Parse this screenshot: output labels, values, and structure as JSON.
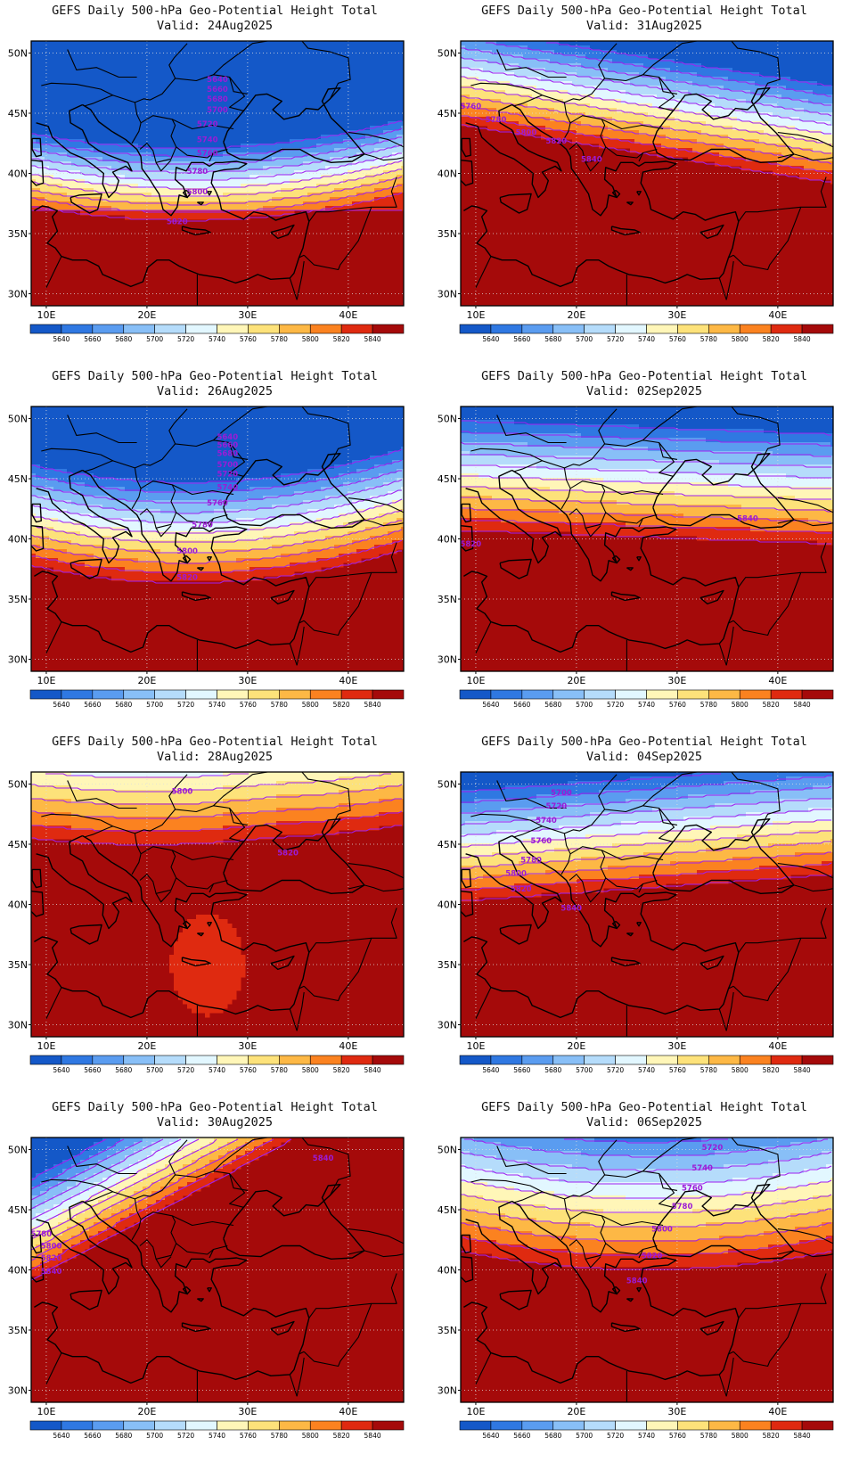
{
  "figure": {
    "title_text": "GEFS Daily 500-hPa Geo-Potential Height Total",
    "valid_prefix": "Valid:"
  },
  "colorbar": {
    "levels": [
      5640,
      5660,
      5680,
      5700,
      5720,
      5740,
      5760,
      5780,
      5800,
      5820,
      5840
    ],
    "colors": [
      "#1458c8",
      "#2f78e2",
      "#5a9cf0",
      "#88bff7",
      "#b5dcfb",
      "#e2f7ff",
      "#fff6b8",
      "#fde27a",
      "#fdb845",
      "#fb8220",
      "#df2a10",
      "#a50a0a"
    ]
  },
  "axes": {
    "lon_range": [
      8.5,
      45.5
    ],
    "lat_range": [
      29,
      51
    ],
    "lon_ticks": [
      10,
      20,
      30,
      40
    ],
    "lon_labels": [
      "10E",
      "20E",
      "30E",
      "40E"
    ],
    "lat_ticks": [
      30,
      35,
      40,
      45,
      50
    ],
    "lat_labels": [
      "30N",
      "35N",
      "40N",
      "45N",
      "50N"
    ],
    "grid": "dotted"
  },
  "chart_data": [
    {
      "type": "heatmap",
      "title": "GEFS Daily 500-hPa Geo-Potential Height Total",
      "valid_date": "24Aug2025",
      "contour_labels": [
        {
          "text": "5640",
          "lon": 27.0,
          "lat": 47.8
        },
        {
          "text": "5660",
          "lon": 27.0,
          "lat": 47.0
        },
        {
          "text": "5680",
          "lon": 27.0,
          "lat": 46.2
        },
        {
          "text": "5700",
          "lon": 27.0,
          "lat": 45.3
        },
        {
          "text": "5720",
          "lon": 26.0,
          "lat": 44.1
        },
        {
          "text": "5740",
          "lon": 26.0,
          "lat": 42.8
        },
        {
          "text": "5760",
          "lon": 26.0,
          "lat": 41.7
        },
        {
          "text": "5780",
          "lon": 25.0,
          "lat": 40.2
        },
        {
          "text": "5800",
          "lon": 25.0,
          "lat": 38.5
        },
        {
          "text": "5820",
          "lon": 23.0,
          "lat": 36.0
        }
      ]
    },
    {
      "type": "heatmap",
      "title": "GEFS Daily 500-hPa Geo-Potential Height Total",
      "valid_date": "31Aug2025",
      "contour_labels": [
        {
          "text": "5760",
          "lon": 9.5,
          "lat": 45.6
        },
        {
          "text": "5780",
          "lon": 12.0,
          "lat": 44.5
        },
        {
          "text": "5800",
          "lon": 15.0,
          "lat": 43.4
        },
        {
          "text": "5820",
          "lon": 18.0,
          "lat": 42.7
        },
        {
          "text": "5840",
          "lon": 21.5,
          "lat": 41.2
        }
      ]
    },
    {
      "type": "heatmap",
      "title": "GEFS Daily 500-hPa Geo-Potential Height Total",
      "valid_date": "26Aug2025",
      "contour_labels": [
        {
          "text": "5640",
          "lon": 28.0,
          "lat": 48.5
        },
        {
          "text": "5660",
          "lon": 28.0,
          "lat": 47.8
        },
        {
          "text": "5680",
          "lon": 28.0,
          "lat": 47.1
        },
        {
          "text": "5700",
          "lon": 28.0,
          "lat": 46.2
        },
        {
          "text": "5720",
          "lon": 28.0,
          "lat": 45.4
        },
        {
          "text": "5740",
          "lon": 28.0,
          "lat": 44.3
        },
        {
          "text": "5760",
          "lon": 27.0,
          "lat": 43.0
        },
        {
          "text": "5780",
          "lon": 25.5,
          "lat": 41.2
        },
        {
          "text": "5800",
          "lon": 24.0,
          "lat": 39.0
        },
        {
          "text": "5820",
          "lon": 24.0,
          "lat": 36.8
        }
      ]
    },
    {
      "type": "heatmap",
      "title": "GEFS Daily 500-hPa Geo-Potential Height Total",
      "valid_date": "02Sep2025",
      "contour_labels": [
        {
          "text": "5820",
          "lon": 9.5,
          "lat": 39.6
        },
        {
          "text": "5840",
          "lon": 37.0,
          "lat": 41.7
        }
      ]
    },
    {
      "type": "heatmap",
      "title": "GEFS Daily 500-hPa Geo-Potential Height Total",
      "valid_date": "28Aug2025",
      "contour_labels": [
        {
          "text": "5800",
          "lon": 23.5,
          "lat": 49.4
        },
        {
          "text": "5820",
          "lon": 34.0,
          "lat": 44.3
        }
      ]
    },
    {
      "type": "heatmap",
      "title": "GEFS Daily 500-hPa Geo-Potential Height Total",
      "valid_date": "04Sep2025",
      "contour_labels": [
        {
          "text": "5700",
          "lon": 18.5,
          "lat": 49.3
        },
        {
          "text": "5720",
          "lon": 18.0,
          "lat": 48.2
        },
        {
          "text": "5740",
          "lon": 17.0,
          "lat": 47.0
        },
        {
          "text": "5760",
          "lon": 16.5,
          "lat": 45.3
        },
        {
          "text": "5780",
          "lon": 15.5,
          "lat": 43.7
        },
        {
          "text": "5800",
          "lon": 14.0,
          "lat": 42.6
        },
        {
          "text": "5820",
          "lon": 14.5,
          "lat": 41.3
        },
        {
          "text": "5840",
          "lon": 19.5,
          "lat": 39.7
        }
      ]
    },
    {
      "type": "heatmap",
      "title": "GEFS Daily 500-hPa Geo-Potential Height Total",
      "valid_date": "30Aug2025",
      "contour_labels": [
        {
          "text": "5780",
          "lon": 9.5,
          "lat": 43.0
        },
        {
          "text": "5800",
          "lon": 10.5,
          "lat": 42.0
        },
        {
          "text": "5820",
          "lon": 10.5,
          "lat": 41.0
        },
        {
          "text": "5840",
          "lon": 10.5,
          "lat": 39.9
        },
        {
          "text": "5840",
          "lon": 37.5,
          "lat": 49.3
        }
      ]
    },
    {
      "type": "heatmap",
      "title": "GEFS Daily 500-hPa Geo-Potential Height Total",
      "valid_date": "06Sep2025",
      "contour_labels": [
        {
          "text": "5720",
          "lon": 33.5,
          "lat": 50.2
        },
        {
          "text": "5740",
          "lon": 32.5,
          "lat": 48.5
        },
        {
          "text": "5760",
          "lon": 31.5,
          "lat": 46.8
        },
        {
          "text": "5780",
          "lon": 30.5,
          "lat": 45.3
        },
        {
          "text": "5800",
          "lon": 28.5,
          "lat": 43.4
        },
        {
          "text": "5820",
          "lon": 27.5,
          "lat": 41.2
        },
        {
          "text": "5840",
          "lon": 26.0,
          "lat": 39.1
        }
      ]
    }
  ]
}
